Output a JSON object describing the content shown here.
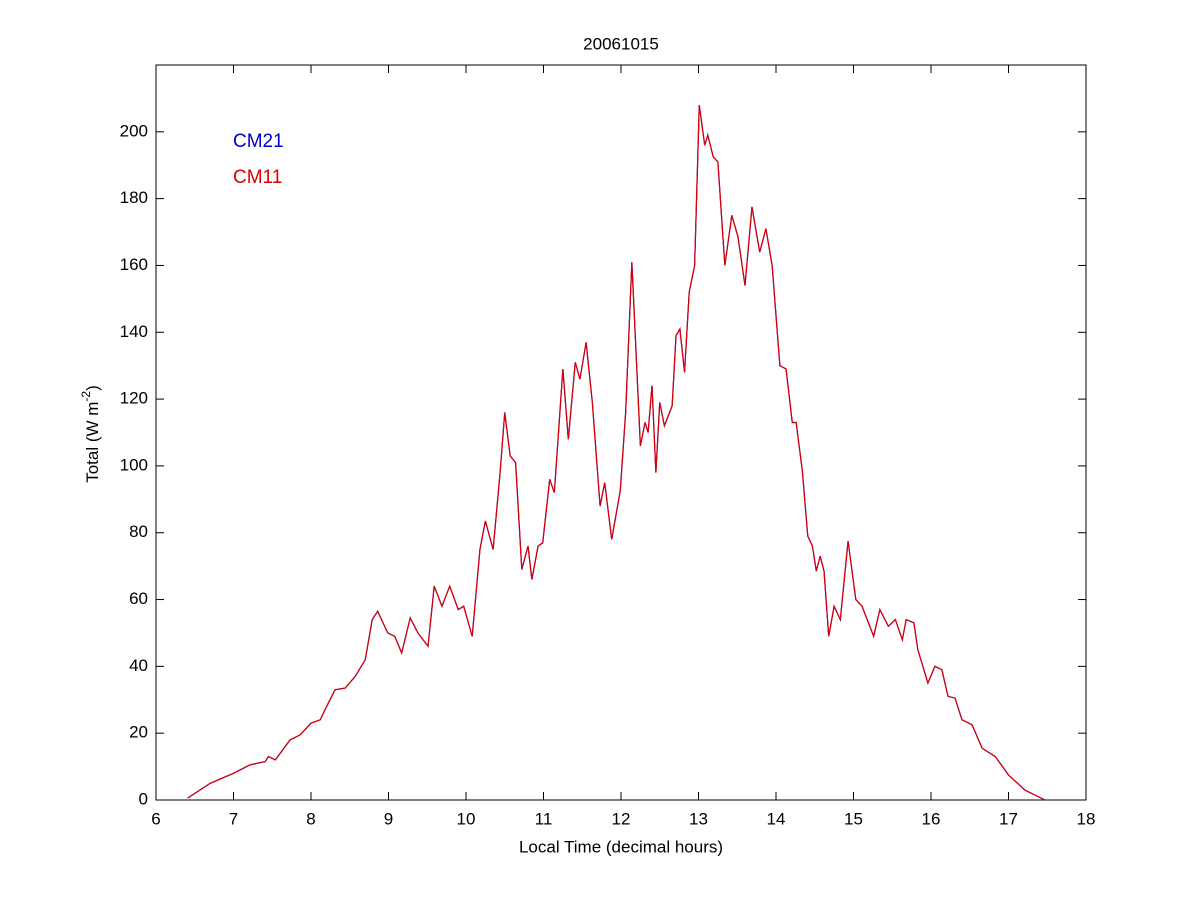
{
  "chart_data": {
    "type": "line",
    "title": "20061015",
    "xlabel": "Local Time (decimal hours)",
    "ylabel": [
      "Total (W m",
      "-2",
      ")"
    ],
    "xlim": [
      6,
      18
    ],
    "xticks": [
      6,
      7,
      8,
      9,
      10,
      11,
      12,
      13,
      14,
      15,
      16,
      17,
      18
    ],
    "ylim": [
      0,
      220
    ],
    "yticks": [
      0,
      20,
      40,
      60,
      80,
      100,
      120,
      140,
      160,
      180,
      200
    ],
    "legend": "upper left",
    "x": [
      6.41,
      6.7,
      7.0,
      7.21,
      7.41,
      7.45,
      7.54,
      7.73,
      7.86,
      8.0,
      8.12,
      8.18,
      8.31,
      8.44,
      8.57,
      8.7,
      8.79,
      8.86,
      8.99,
      9.08,
      9.17,
      9.28,
      9.38,
      9.51,
      9.59,
      9.69,
      9.79,
      9.9,
      9.97,
      10.08,
      10.18,
      10.25,
      10.35,
      10.44,
      10.5,
      10.57,
      10.64,
      10.72,
      10.8,
      10.85,
      10.93,
      10.99,
      11.08,
      11.14,
      11.25,
      11.32,
      11.41,
      11.47,
      11.55,
      11.63,
      11.73,
      11.79,
      11.88,
      11.99,
      12.06,
      12.14,
      12.25,
      12.31,
      12.35,
      12.4,
      12.45,
      12.5,
      12.56,
      12.66,
      12.71,
      12.76,
      12.82,
      12.88,
      12.95,
      13.01,
      13.08,
      13.12,
      13.19,
      13.25,
      13.34,
      13.43,
      13.51,
      13.6,
      13.69,
      13.79,
      13.87,
      13.95,
      14.05,
      14.13,
      14.21,
      14.26,
      14.34,
      14.41,
      14.47,
      14.52,
      14.57,
      14.62,
      14.68,
      14.75,
      14.83,
      14.93,
      15.03,
      15.11,
      15.26,
      15.34,
      15.45,
      15.54,
      15.63,
      15.68,
      15.78,
      15.83,
      15.96,
      16.05,
      16.14,
      16.22,
      16.31,
      16.4,
      16.53,
      16.66,
      16.83,
      17.0,
      17.21,
      17.47
    ],
    "series": [
      {
        "name": "CM21",
        "color": "#0000cc",
        "values": [
          0.6,
          5,
          8,
          10.5,
          11.5,
          13,
          12,
          18,
          19.5,
          23,
          24,
          27,
          33,
          33.5,
          37,
          42,
          54,
          56.5,
          50,
          49,
          44,
          54.5,
          50,
          46,
          64,
          58,
          64,
          57,
          58,
          49,
          75,
          83.5,
          75,
          98,
          116,
          103,
          101,
          69,
          76,
          66,
          76,
          77,
          96,
          92,
          129,
          108,
          131,
          126,
          137,
          119,
          88,
          95,
          78,
          92.5,
          116,
          161,
          106,
          113,
          110,
          124,
          98,
          119,
          112,
          118,
          139,
          141,
          128,
          152,
          160,
          208,
          196,
          199,
          192.5,
          191,
          160,
          175,
          168.5,
          154,
          177.5,
          164,
          171,
          160,
          130,
          129,
          113,
          113,
          98.5,
          79,
          76,
          68.5,
          73,
          68.5,
          49,
          58,
          54,
          77.5,
          60,
          58,
          49,
          57,
          52,
          54,
          48,
          54,
          53,
          45,
          35,
          40,
          39,
          31,
          30.5,
          24,
          22.5,
          15.5,
          13,
          7.5,
          3,
          0
        ]
      },
      {
        "name": "CM11",
        "color": "#dd0000",
        "values": [
          0.6,
          5,
          8,
          10.5,
          11.5,
          13,
          12,
          18,
          19.5,
          23,
          24,
          27,
          33,
          33.5,
          37,
          42,
          54,
          56.5,
          50,
          49,
          44,
          54.5,
          50,
          46,
          64,
          58,
          64,
          57,
          58,
          49,
          75,
          83.5,
          75,
          98,
          116,
          103,
          101,
          69,
          76,
          66,
          76,
          77,
          96,
          92,
          129,
          108,
          131,
          126,
          137,
          119,
          88,
          95,
          78,
          92.5,
          116,
          161,
          106,
          113,
          110,
          124,
          98,
          119,
          112,
          118,
          139,
          141,
          128,
          152,
          160,
          208,
          196,
          199,
          192.5,
          191,
          160,
          175,
          168.5,
          154,
          177.5,
          164,
          171,
          160,
          130,
          129,
          113,
          113,
          98.5,
          79,
          76,
          68.5,
          73,
          68.5,
          49,
          58,
          54,
          77.5,
          60,
          58,
          49,
          57,
          52,
          54,
          48,
          54,
          53,
          45,
          35,
          40,
          39,
          31,
          30.5,
          24,
          22.5,
          15.5,
          13,
          7.5,
          3,
          0
        ]
      }
    ]
  }
}
